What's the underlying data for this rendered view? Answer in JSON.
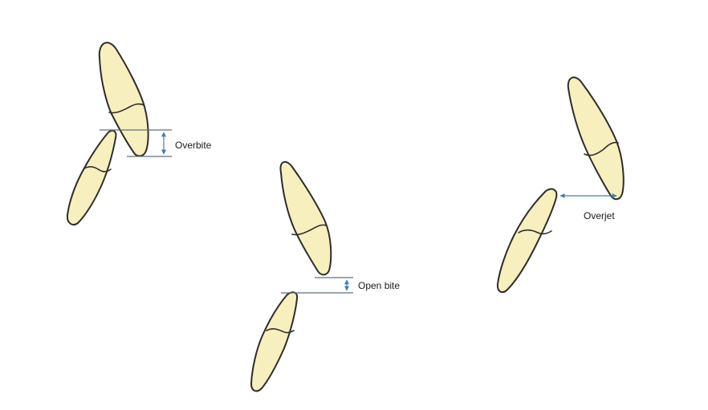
{
  "labels": {
    "overbite": "Overbite",
    "open_bite": "Open bite",
    "overjet": "Overjet"
  },
  "colors": {
    "tooth_fill": "#f7efbd",
    "outline": "#2d2d2d",
    "measure": "#3f80a8"
  }
}
